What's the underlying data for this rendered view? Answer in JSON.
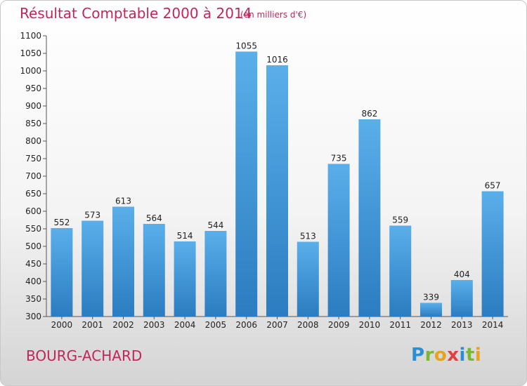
{
  "title": "Résultat Comptable 2000 à 2014",
  "subtitle": "(en milliers d'€)",
  "commune": "BOURG-ACHARD",
  "logo": {
    "letters": [
      "P",
      "r",
      "o",
      "x",
      "i",
      "t",
      "i"
    ],
    "colors": [
      "#2d8ed4",
      "#7cb82f",
      "#e8a21b",
      "#e23f3f",
      "#2d8ed4",
      "#7cb82f",
      "#e8a21b"
    ]
  },
  "chart_data": {
    "type": "bar",
    "title": "Résultat Comptable 2000 à 2014",
    "subtitle": "(en milliers d'€)",
    "categories": [
      "2000",
      "2001",
      "2002",
      "2003",
      "2004",
      "2005",
      "2006",
      "2007",
      "2008",
      "2009",
      "2010",
      "2011",
      "2012",
      "2013",
      "2014"
    ],
    "values": [
      552,
      573,
      613,
      564,
      514,
      544,
      1055,
      1016,
      513,
      735,
      862,
      559,
      339,
      404,
      657
    ],
    "ylim": [
      300,
      1100
    ],
    "yticks": [
      300,
      350,
      400,
      450,
      500,
      550,
      600,
      650,
      700,
      750,
      800,
      850,
      900,
      950,
      1000,
      1050,
      1100
    ],
    "xlabel": "",
    "ylabel": "",
    "grid": false,
    "bar_color": "#4d9fdc"
  }
}
